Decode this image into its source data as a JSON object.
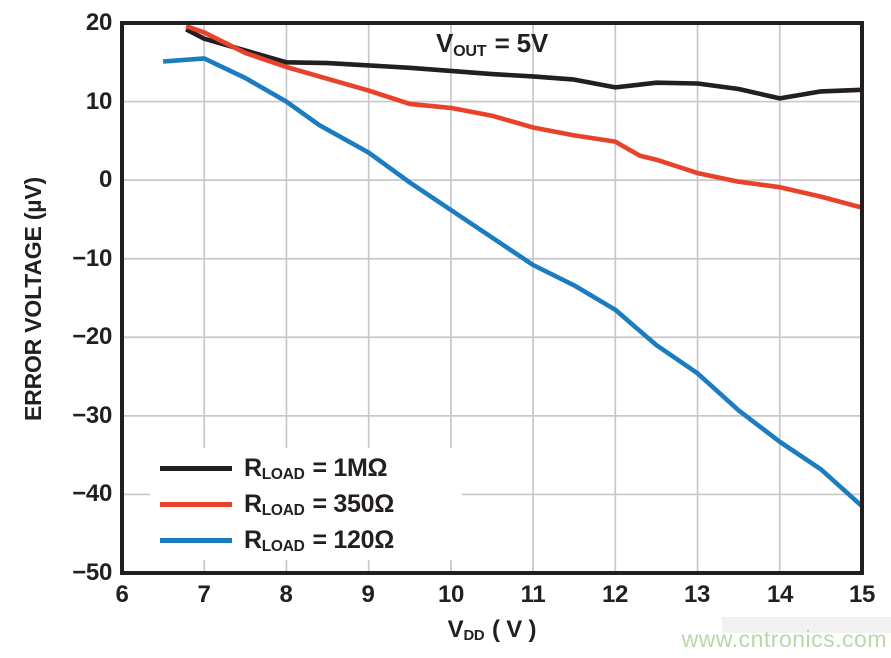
{
  "watermark": {
    "text": "www.cntronics.com",
    "color": "#b5d9a9"
  },
  "chart_data": {
    "type": "line",
    "title": "",
    "annotation": {
      "prefix": "V",
      "sub": "OUT",
      "rest": "= 5V"
    },
    "xlabel": {
      "prefix": "V",
      "sub": "DD",
      "rest": "( V )"
    },
    "ylabel": "ERROR VOLTAGE (µV)",
    "xlim": [
      6,
      15
    ],
    "ylim": [
      -50,
      20
    ],
    "grid": true,
    "legend_position": "lower-left",
    "xticks": [
      "6",
      "7",
      "8",
      "9",
      "10",
      "11",
      "12",
      "13",
      "14",
      "15"
    ],
    "xtick_values": [
      6,
      7,
      8,
      9,
      10,
      11,
      12,
      13,
      14,
      15
    ],
    "yticks": [
      "20",
      "10",
      "0",
      "−10",
      "−20",
      "−30",
      "−40",
      "−50"
    ],
    "ytick_values": [
      20,
      10,
      0,
      -10,
      -20,
      -30,
      -40,
      -50
    ],
    "frame_color": "#231f20",
    "grid_color": "#c7c8ca",
    "series": [
      {
        "name": "RLOAD = 1MΩ",
        "legend": {
          "prefix": "R",
          "sub": "LOAD",
          "rest": "= 1MΩ"
        },
        "color": "#231f20",
        "points": [
          [
            6.78,
            19.2
          ],
          [
            7,
            18.0
          ],
          [
            7.5,
            16.5
          ],
          [
            8,
            15.0
          ],
          [
            8.5,
            14.9
          ],
          [
            9,
            14.6
          ],
          [
            9.5,
            14.3
          ],
          [
            10,
            13.9
          ],
          [
            10.5,
            13.5
          ],
          [
            11,
            13.2
          ],
          [
            11.5,
            12.8
          ],
          [
            12,
            11.8
          ],
          [
            12.5,
            12.4
          ],
          [
            13,
            12.3
          ],
          [
            13.5,
            11.6
          ],
          [
            14,
            10.4
          ],
          [
            14.5,
            11.3
          ],
          [
            15,
            11.5
          ]
        ]
      },
      {
        "name": "RLOAD = 350Ω",
        "legend": {
          "prefix": "R",
          "sub": "LOAD",
          "rest": "= 350Ω"
        },
        "color": "#e8432a",
        "points": [
          [
            6.78,
            19.6
          ],
          [
            7,
            18.8
          ],
          [
            7.5,
            16.2
          ],
          [
            8,
            14.4
          ],
          [
            8.5,
            12.9
          ],
          [
            9,
            11.4
          ],
          [
            9.5,
            9.7
          ],
          [
            10,
            9.2
          ],
          [
            10.5,
            8.2
          ],
          [
            11,
            6.7
          ],
          [
            11.5,
            5.7
          ],
          [
            12,
            4.9
          ],
          [
            12.3,
            3.1
          ],
          [
            12.5,
            2.6
          ],
          [
            13,
            0.9
          ],
          [
            13.5,
            -0.2
          ],
          [
            14,
            -0.9
          ],
          [
            14.5,
            -2.1
          ],
          [
            15,
            -3.5
          ]
        ]
      },
      {
        "name": "RLOAD = 120Ω",
        "legend": {
          "prefix": "R",
          "sub": "LOAD",
          "rest": "= 120Ω"
        },
        "color": "#1b7dbf",
        "points": [
          [
            6.5,
            15.1
          ],
          [
            7,
            15.5
          ],
          [
            7.5,
            13.0
          ],
          [
            8,
            10.0
          ],
          [
            8.4,
            7.0
          ],
          [
            9,
            3.5
          ],
          [
            9.5,
            -0.3
          ],
          [
            10,
            -3.8
          ],
          [
            10.5,
            -7.3
          ],
          [
            11,
            -10.8
          ],
          [
            11.5,
            -13.4
          ],
          [
            12,
            -16.5
          ],
          [
            12.5,
            -21.0
          ],
          [
            13,
            -24.6
          ],
          [
            13.5,
            -29.3
          ],
          [
            14,
            -33.3
          ],
          [
            14.5,
            -36.8
          ],
          [
            15,
            -41.5
          ]
        ]
      }
    ]
  }
}
